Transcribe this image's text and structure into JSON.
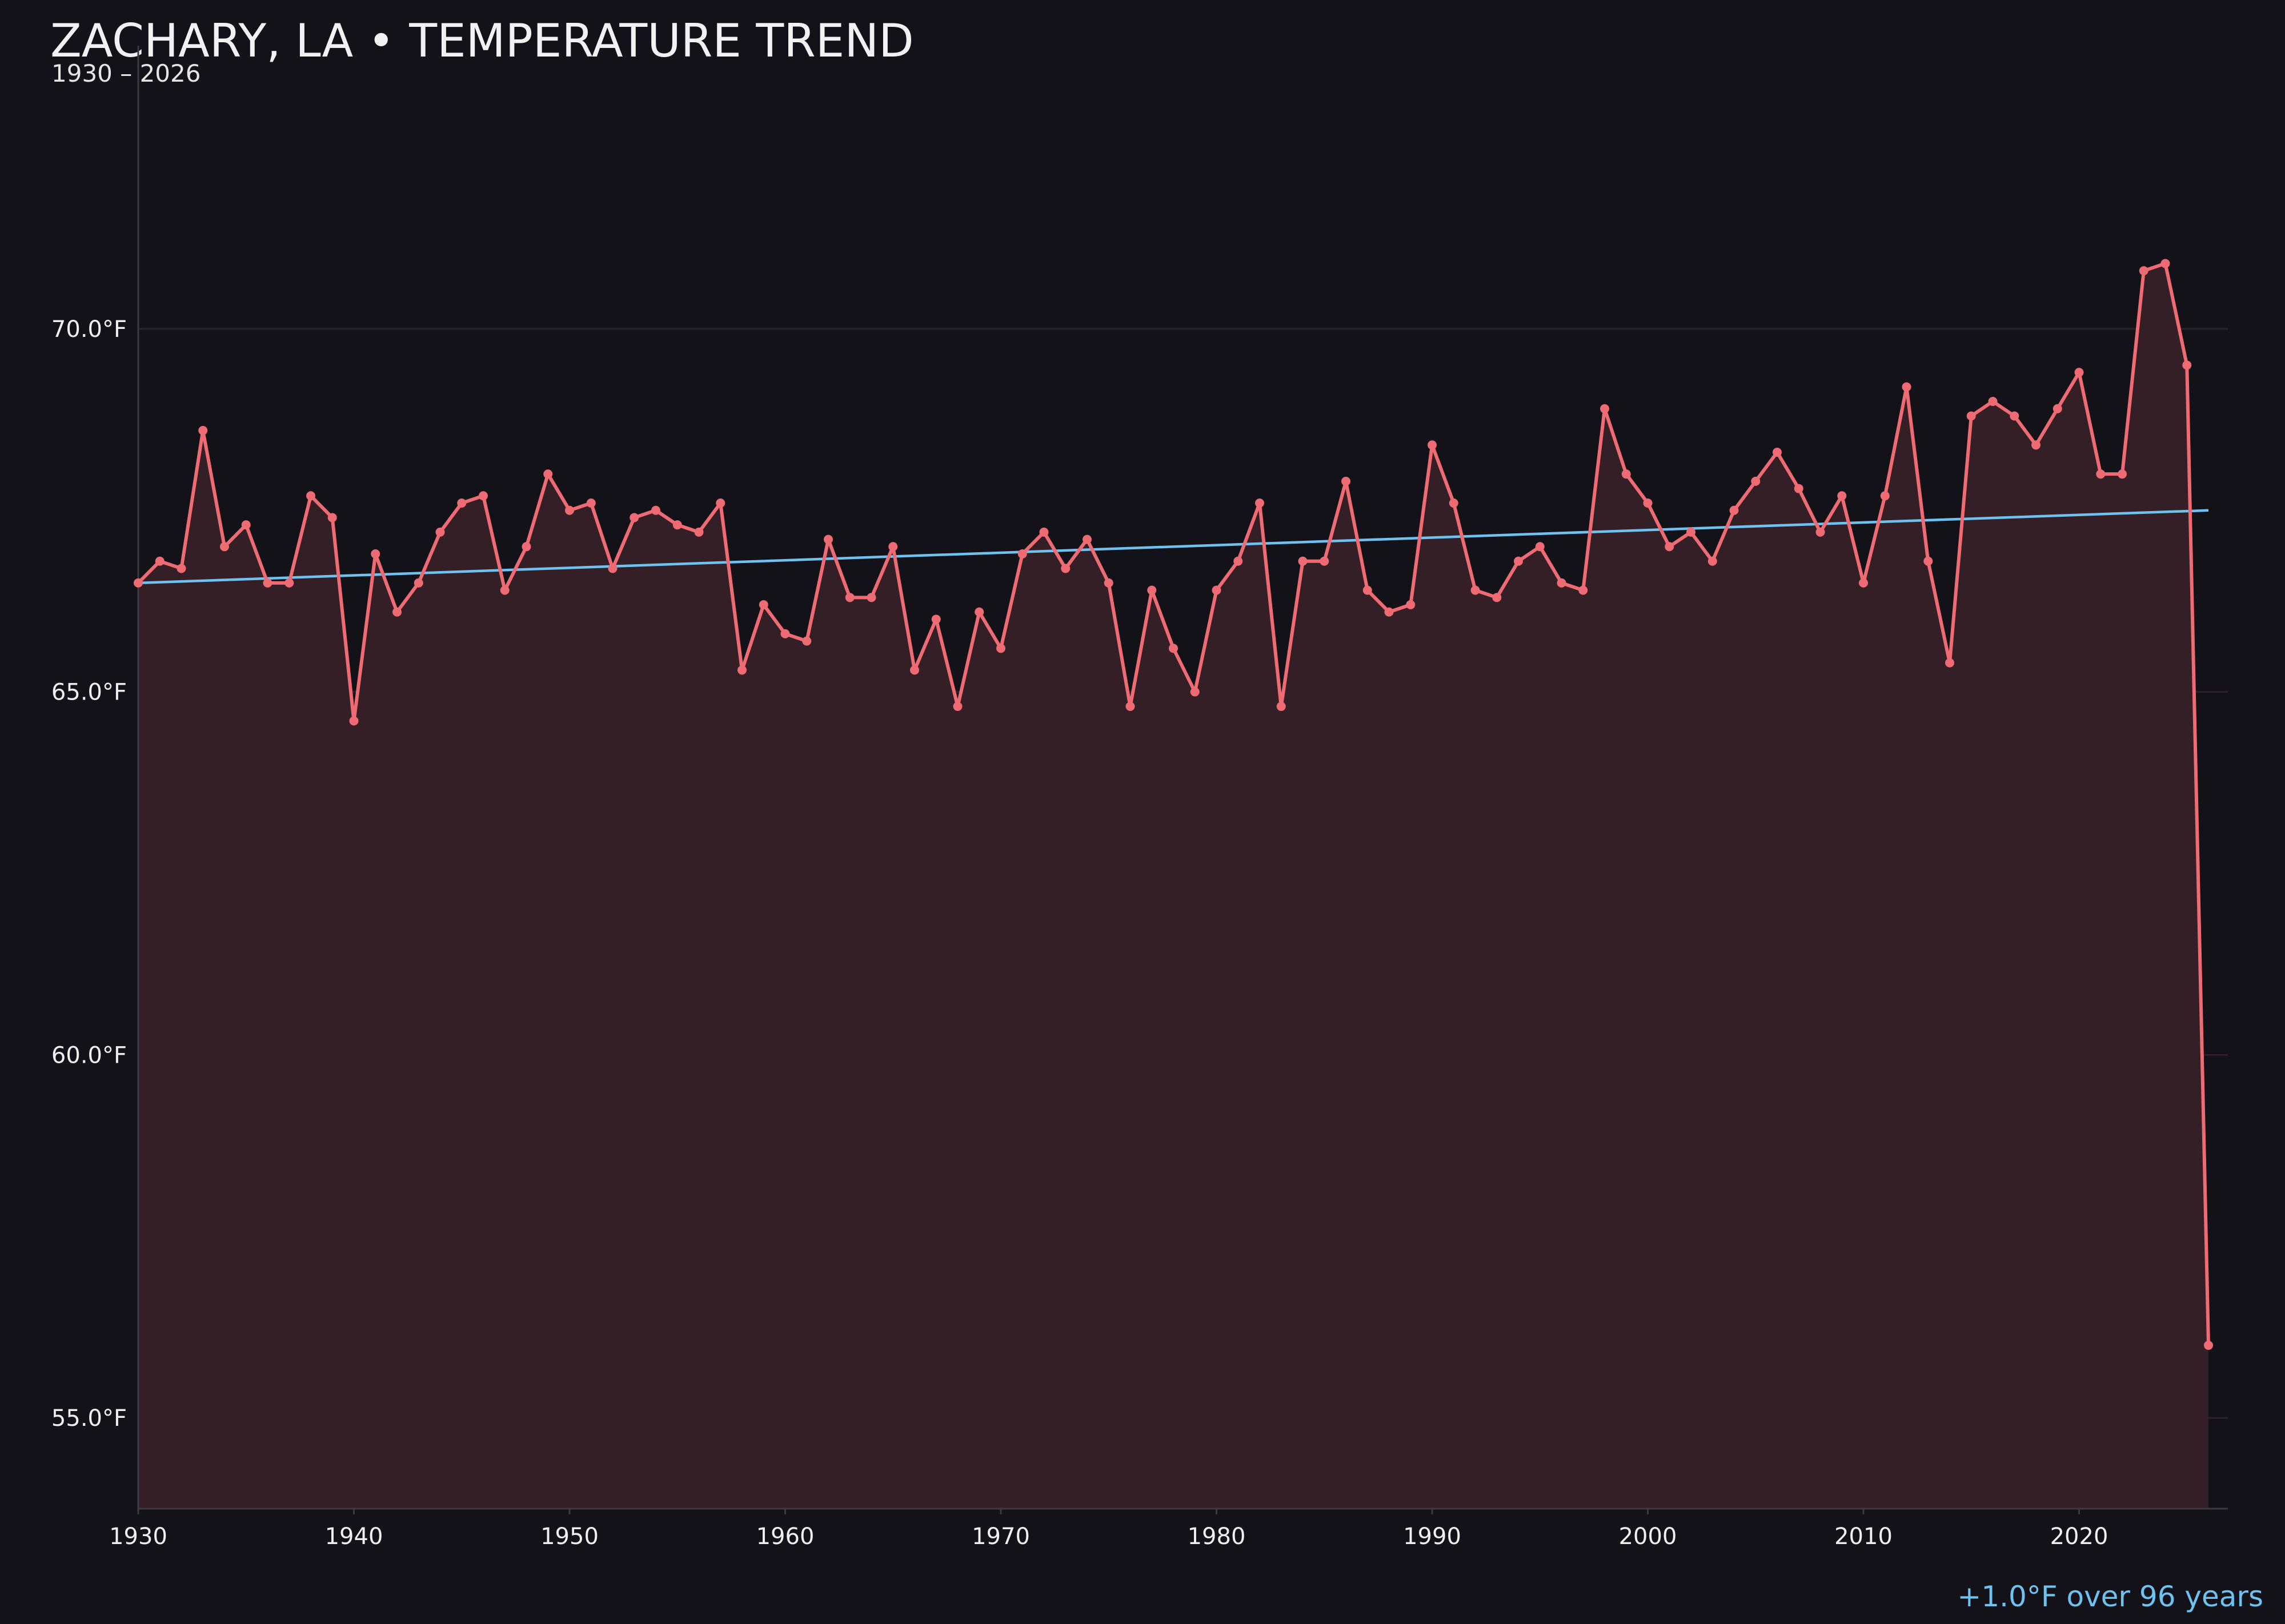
{
  "colors": {
    "background": "#131218",
    "series_line": "#ef6b73",
    "series_fill": "#341f26",
    "trend_line": "#6fc1f0",
    "grid": "#2a2329",
    "axis": "#3a3a40",
    "annotation": "#6fc1f0"
  },
  "chart_data": {
    "type": "line",
    "title": "ZACHARY, LA • TEMPERATURE TREND",
    "subtitle": "1930 – 2026",
    "annotation": "+1.0°F over 96 years",
    "xlabel": "",
    "ylabel": "",
    "xlim": [
      1930,
      2026.9
    ],
    "ylim": [
      53.75,
      73.9
    ],
    "x_ticks": [
      1930,
      1940,
      1950,
      1960,
      1970,
      1980,
      1990,
      2000,
      2010,
      2020
    ],
    "y_ticks": [
      55.0,
      60.0,
      65.0,
      70.0
    ],
    "y_tick_labels": [
      "55.0°F",
      "60.0°F",
      "65.0°F",
      "70.0°F"
    ],
    "grid": "horizontal",
    "legend": "none",
    "series": [
      {
        "style": "line-with-markers-and-area-fill",
        "x": [
          1930,
          1931,
          1932,
          1933,
          1934,
          1935,
          1936,
          1937,
          1938,
          1939,
          1940,
          1941,
          1942,
          1943,
          1944,
          1945,
          1946,
          1947,
          1948,
          1949,
          1950,
          1951,
          1952,
          1953,
          1954,
          1955,
          1956,
          1957,
          1958,
          1959,
          1960,
          1961,
          1962,
          1963,
          1964,
          1965,
          1966,
          1967,
          1968,
          1969,
          1970,
          1971,
          1972,
          1973,
          1974,
          1975,
          1976,
          1977,
          1978,
          1979,
          1980,
          1981,
          1982,
          1983,
          1984,
          1985,
          1986,
          1987,
          1988,
          1989,
          1990,
          1991,
          1992,
          1993,
          1994,
          1995,
          1996,
          1997,
          1998,
          1999,
          2000,
          2001,
          2002,
          2003,
          2004,
          2005,
          2006,
          2007,
          2008,
          2009,
          2010,
          2011,
          2012,
          2013,
          2014,
          2015,
          2016,
          2017,
          2018,
          2019,
          2020,
          2021,
          2022,
          2023,
          2024,
          2025,
          2026
        ],
        "values": [
          66.5,
          66.8,
          66.7,
          68.6,
          67.0,
          67.3,
          66.5,
          66.5,
          67.7,
          67.4,
          64.6,
          66.9,
          66.1,
          66.5,
          67.2,
          67.6,
          67.7,
          66.4,
          67.0,
          68.0,
          67.5,
          67.6,
          66.7,
          67.4,
          67.5,
          67.3,
          67.2,
          67.6,
          65.3,
          66.2,
          65.8,
          65.7,
          67.1,
          66.3,
          66.3,
          67.0,
          65.3,
          66.0,
          64.8,
          66.1,
          65.6,
          66.9,
          67.2,
          66.7,
          67.1,
          66.5,
          64.8,
          66.4,
          65.6,
          65.0,
          66.4,
          66.8,
          67.6,
          64.8,
          66.8,
          66.8,
          67.9,
          66.4,
          66.1,
          66.2,
          68.4,
          67.6,
          66.4,
          66.3,
          66.8,
          67.0,
          66.5,
          66.4,
          68.9,
          68.0,
          67.6,
          67.0,
          67.2,
          66.8,
          67.5,
          67.9,
          68.3,
          67.8,
          67.2,
          67.7,
          66.5,
          67.7,
          69.2,
          66.8,
          65.4,
          68.8,
          69.0,
          68.8,
          68.4,
          68.9,
          69.4,
          68.0,
          68.0,
          70.8,
          70.9,
          69.5,
          56.0
        ]
      },
      {
        "style": "trend-line",
        "x": [
          1930,
          2026
        ],
        "values": [
          66.5,
          67.5
        ]
      }
    ]
  }
}
